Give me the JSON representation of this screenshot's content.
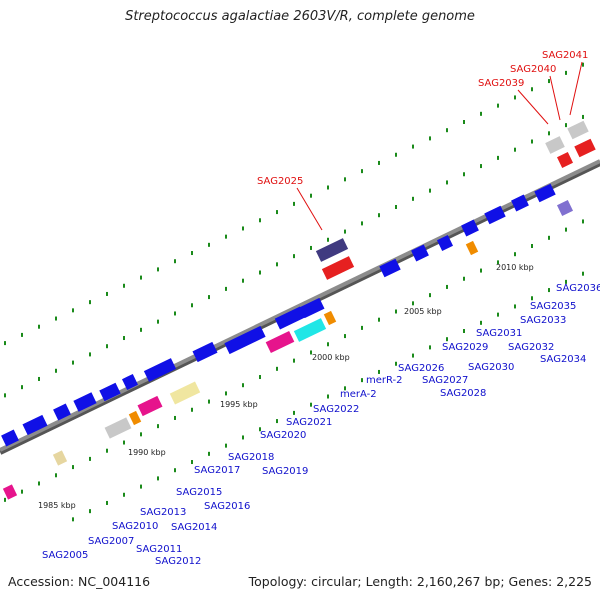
{
  "map": {
    "title": "Streptococcus agalactiae 2603V/R, complete genome",
    "accession": "Accession: NC_004116",
    "summary": "Topology: circular; Length: 2,160,267 bp; Genes: 2,225",
    "kbp_labels": [
      "1985 kbp",
      "1990 kbp",
      "1995 kbp",
      "2000 kbp",
      "2005 kbp",
      "2010 kbp"
    ],
    "red_labels": [
      "SAG2025",
      "SAG2039",
      "SAG2040",
      "SAG2041"
    ],
    "blue_labels": [
      "SAG2005",
      "SAG2007",
      "SAG2010",
      "SAG2011",
      "SAG2012",
      "SAG2013",
      "SAG2014",
      "SAG2015",
      "SAG2016",
      "SAG2017",
      "SAG2018",
      "SAG2019",
      "SAG2020",
      "SAG2021",
      "SAG2022",
      "merA-2",
      "merR-2",
      "SAG2026",
      "SAG2027",
      "SAG2028",
      "SAG2029",
      "SAG2030",
      "SAG2031",
      "SAG2032",
      "SAG2033",
      "SAG2034",
      "SAG2035",
      "SAG2036"
    ],
    "colors": {
      "backbone": "#8c8c8c",
      "tick": "#1a8a1a",
      "forward_gene": "#1010e6",
      "highlight": "#e62020",
      "label_blue": "#1010cc",
      "label_red": "#e01010"
    }
  }
}
